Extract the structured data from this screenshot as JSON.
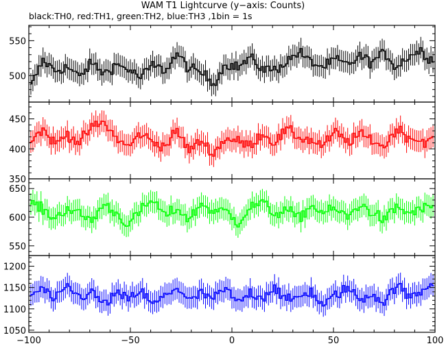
{
  "chart_data": {
    "type": "line",
    "title": "WAM T1 Lightcurve (y−axis: Counts)",
    "subtitle": "black:TH0, red:TH1, green:TH2, blue:TH3 ,1bin = 1s",
    "xlim": [
      -100,
      100
    ],
    "x_ticks": [
      -100,
      -50,
      0,
      50,
      100
    ],
    "x_tick_labels": [
      "−100",
      "−50",
      "0",
      "50",
      "100"
    ],
    "grid": false,
    "series": [
      {
        "name": "TH0",
        "color": "#000000",
        "ylim": [
          462,
          572
        ],
        "y_ticks": [
          500,
          550
        ],
        "y_tick_labels": [
          "500",
          "550"
        ],
        "x": [
          -99,
          -93,
          -87,
          -81,
          -75,
          -69,
          -63,
          -57,
          -51,
          -45,
          -39,
          -33,
          -27,
          -21,
          -15,
          -9,
          -3,
          3,
          9,
          15,
          21,
          27,
          33,
          39,
          45,
          51,
          57,
          63,
          69,
          75,
          81,
          87,
          93,
          99
        ],
        "values": [
          484,
          522,
          507,
          512,
          498,
          518,
          503,
          516,
          509,
          497,
          515,
          507,
          531,
          510,
          504,
          489,
          517,
          512,
          525,
          510,
          508,
          520,
          534,
          519,
          512,
          523,
          515,
          528,
          519,
          533,
          512,
          528,
          536,
          521
        ]
      },
      {
        "name": "TH1",
        "color": "#ff0000",
        "ylim": [
          350,
          478
        ],
        "y_ticks": [
          350,
          400,
          450
        ],
        "y_tick_labels": [
          "350",
          "400",
          "450"
        ],
        "x": [
          -99,
          -93,
          -87,
          -81,
          -75,
          -69,
          -63,
          -57,
          -51,
          -45,
          -39,
          -33,
          -27,
          -21,
          -15,
          -9,
          -3,
          3,
          9,
          15,
          21,
          27,
          33,
          39,
          45,
          51,
          57,
          63,
          69,
          75,
          81,
          87,
          93,
          99
        ],
        "values": [
          416,
          432,
          408,
          425,
          410,
          436,
          444,
          418,
          403,
          426,
          412,
          404,
          430,
          397,
          414,
          392,
          418,
          412,
          406,
          426,
          410,
          432,
          419,
          414,
          405,
          428,
          411,
          424,
          415,
          403,
          434,
          420,
          413,
          414
        ]
      },
      {
        "name": "TH2",
        "color": "#00ff00",
        "ylim": [
          533,
          667
        ],
        "y_ticks": [
          550,
          600,
          650
        ],
        "y_tick_labels": [
          "550",
          "600",
          "650"
        ],
        "x": [
          -99,
          -93,
          -87,
          -81,
          -75,
          -69,
          -63,
          -57,
          -51,
          -45,
          -39,
          -33,
          -27,
          -21,
          -15,
          -9,
          -3,
          3,
          9,
          15,
          21,
          27,
          33,
          39,
          45,
          51,
          57,
          63,
          69,
          75,
          81,
          87,
          93,
          99
        ],
        "values": [
          628,
          612,
          598,
          616,
          605,
          594,
          623,
          607,
          586,
          611,
          630,
          602,
          615,
          596,
          624,
          609,
          612,
          590,
          617,
          626,
          605,
          613,
          598,
          620,
          608,
          614,
          600,
          622,
          609,
          594,
          618,
          607,
          613,
          620
        ]
      },
      {
        "name": "TH3",
        "color": "#0000ff",
        "ylim": [
          1045,
          1225
        ],
        "y_ticks": [
          1050,
          1100,
          1150,
          1200
        ],
        "y_tick_labels": [
          "1050",
          "1100",
          "1150",
          "1200"
        ],
        "x": [
          -99,
          -93,
          -87,
          -81,
          -75,
          -69,
          -63,
          -57,
          -51,
          -45,
          -39,
          -33,
          -27,
          -21,
          -15,
          -9,
          -3,
          3,
          9,
          15,
          21,
          27,
          33,
          39,
          45,
          51,
          57,
          63,
          69,
          75,
          81,
          87,
          93,
          99
        ],
        "values": [
          1132,
          1148,
          1118,
          1154,
          1127,
          1139,
          1110,
          1135,
          1122,
          1143,
          1109,
          1130,
          1151,
          1118,
          1136,
          1124,
          1147,
          1113,
          1138,
          1126,
          1152,
          1117,
          1129,
          1141,
          1106,
          1133,
          1149,
          1121,
          1136,
          1114,
          1158,
          1127,
          1140,
          1164
        ]
      }
    ]
  }
}
